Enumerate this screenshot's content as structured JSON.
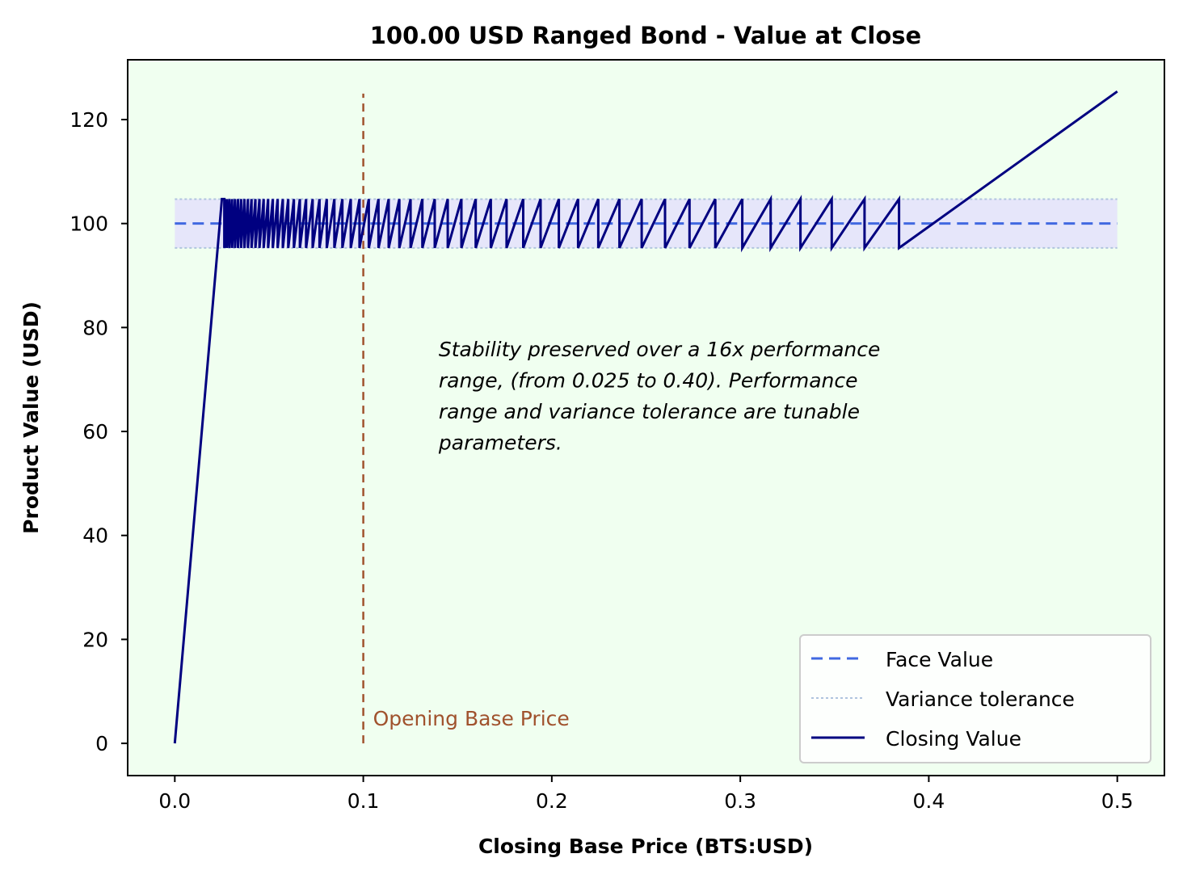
{
  "chart_data": {
    "type": "line",
    "title": "100.00 USD Ranged Bond - Value at Close",
    "xlabel": "Closing Base Price (BTS:USD)",
    "ylabel": "Product Value (USD)",
    "xlim": [
      -0.025,
      0.525
    ],
    "ylim": [
      -6.2,
      131.5
    ],
    "xticks": [
      0.0,
      0.1,
      0.2,
      0.3,
      0.4,
      0.5
    ],
    "xtick_labels": [
      "0.0",
      "0.1",
      "0.2",
      "0.3",
      "0.4",
      "0.5"
    ],
    "yticks": [
      0,
      20,
      40,
      60,
      80,
      100,
      120
    ],
    "ytick_labels": [
      "0",
      "20",
      "40",
      "60",
      "80",
      "100",
      "120"
    ],
    "grid": false,
    "background_color": "#f0fff0",
    "legend_position": "lower right",
    "face_value": 100,
    "variance_band": [
      95.3,
      104.7
    ],
    "band_x_range": [
      0.0,
      0.5
    ],
    "series": [
      {
        "name": "Face Value",
        "style": "dashed",
        "color": "#4169e1",
        "x": [
          0.0,
          0.5
        ],
        "y": [
          100,
          100
        ]
      },
      {
        "name": "Variance tolerance",
        "style": "dotted",
        "color": "#b0c4de",
        "x": [
          0.0,
          0.5
        ],
        "y_lower": 95.3,
        "y_upper": 104.7
      },
      {
        "name": "Closing Value",
        "style": "solid",
        "color": "#000080",
        "x": [
          0.0,
          0.025,
          0.02625,
          0.02625,
          0.02756,
          0.02756,
          0.02894,
          0.02894,
          0.03039,
          0.03039,
          0.03191,
          0.03191,
          0.0335,
          0.0335,
          0.03518,
          0.03518,
          0.03694,
          0.03694,
          0.03878,
          0.03878,
          0.04072,
          0.04072,
          0.04276,
          0.04276,
          0.0449,
          0.0449,
          0.04714,
          0.04714,
          0.0495,
          0.0495,
          0.05198,
          0.05198,
          0.05457,
          0.05457,
          0.0573,
          0.0573,
          0.06017,
          0.06017,
          0.06318,
          0.06318,
          0.06634,
          0.06634,
          0.06965,
          0.06965,
          0.07314,
          0.07314,
          0.07679,
          0.07679,
          0.08063,
          0.08063,
          0.08467,
          0.08467,
          0.0889,
          0.0889,
          0.09334,
          0.09334,
          0.09801,
          0.09801,
          0.10291,
          0.10291,
          0.10806,
          0.10806,
          0.11346,
          0.11346,
          0.11913,
          0.11913,
          0.12509,
          0.12509,
          0.13135,
          0.13135,
          0.13791,
          0.13791,
          0.14481,
          0.14481,
          0.15205,
          0.15205,
          0.15965,
          0.15965,
          0.16764,
          0.16764,
          0.17602,
          0.17602,
          0.18482,
          0.18482,
          0.19406,
          0.19406,
          0.20376,
          0.20376,
          0.21395,
          0.21395,
          0.22465,
          0.22465,
          0.23588,
          0.23588,
          0.24768,
          0.24768,
          0.26006,
          0.26006,
          0.27306,
          0.27306,
          0.28672,
          0.28672,
          0.30105,
          0.30105,
          0.31611,
          0.31611,
          0.33191,
          0.33191,
          0.34851,
          0.34851,
          0.36593,
          0.36593,
          0.38423,
          0.38423,
          0.5
        ],
        "y": [
          0,
          104.7,
          104.7,
          95.3,
          104.7,
          95.3,
          104.7,
          95.3,
          104.7,
          95.3,
          104.7,
          95.3,
          104.7,
          95.3,
          104.7,
          95.3,
          104.7,
          95.3,
          104.7,
          95.3,
          104.7,
          95.3,
          104.7,
          95.3,
          104.7,
          95.3,
          104.7,
          95.3,
          104.7,
          95.3,
          104.7,
          95.3,
          104.7,
          95.3,
          104.7,
          95.3,
          104.7,
          95.3,
          104.7,
          95.3,
          104.7,
          95.3,
          104.7,
          95.3,
          104.7,
          95.3,
          104.7,
          95.3,
          104.7,
          95.3,
          104.7,
          95.3,
          104.7,
          95.3,
          104.7,
          95.3,
          104.7,
          95.3,
          104.7,
          95.3,
          104.7,
          95.3,
          104.7,
          95.3,
          104.7,
          95.3,
          104.7,
          95.3,
          104.7,
          95.3,
          104.7,
          95.3,
          104.7,
          95.3,
          104.7,
          95.3,
          104.7,
          95.3,
          104.7,
          95.3,
          104.7,
          95.3,
          104.7,
          95.3,
          104.7,
          95.3,
          104.7,
          95.3,
          104.7,
          95.3,
          104.7,
          95.3,
          104.7,
          95.3,
          104.7,
          95.3,
          104.7,
          95.3,
          104.7,
          95.3,
          104.7,
          95.3,
          104.7,
          95.3,
          104.7,
          95.3,
          104.7,
          95.3,
          104.7,
          95.3,
          104.7,
          95.3,
          104.7,
          95.3,
          125.4
        ]
      }
    ],
    "vertical_line": {
      "x": 0.1,
      "y_range": [
        0,
        125
      ],
      "label": "Opening Base Price",
      "color": "#a0522d",
      "style": "dashed"
    },
    "annotation": {
      "lines": [
        "Stability preserved over a 16x performance",
        "range, (from 0.025 to 0.40). Performance",
        "range and variance tolerance are tunable",
        "parameters."
      ],
      "x": 0.14,
      "y": 74.5
    },
    "legend": [
      {
        "label": "Face Value",
        "style": "dashed",
        "color": "#4169e1"
      },
      {
        "label": "Variance tolerance",
        "style": "dotted",
        "color": "#b0c4de"
      },
      {
        "label": "Closing Value",
        "style": "solid",
        "color": "#000080"
      }
    ]
  }
}
